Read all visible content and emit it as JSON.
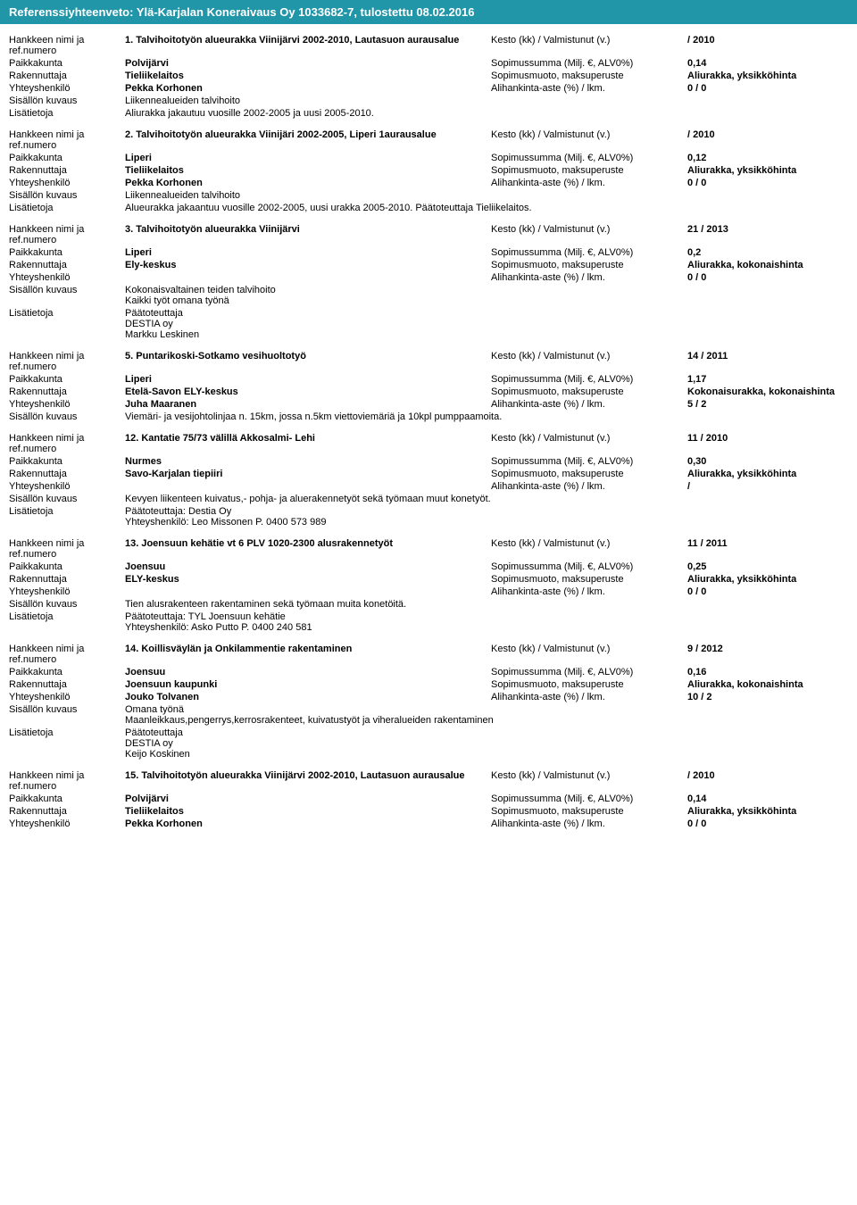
{
  "header": "Referenssiyhteenveto: Ylä-Karjalan Koneraivaus Oy 1033682-7, tulostettu 08.02.2016",
  "labels": {
    "name": "Hankkeen nimi ja ref.numero",
    "place": "Paikkakunta",
    "client": "Rakennuttaja",
    "contact": "Yhteyshenkilö",
    "desc": "Sisällön kuvaus",
    "extra": "Lisätietoja",
    "duration": "Kesto (kk) / Valmistunut (v.)",
    "sum": "Sopimussumma (Milj. €, ALV0%)",
    "form": "Sopimusmuoto, maksuperuste",
    "sub": "Alihankinta-aste (%) / lkm."
  },
  "projects": [
    {
      "name": "1. Talvihoitotyön alueurakka Viinijärvi 2002-2010, Lautasuon aurausalue",
      "duration": "/ 2010",
      "place": "Polvijärvi",
      "sum": "0,14",
      "client": "Tieliikelaitos",
      "form": "Aliurakka, yksikköhinta",
      "contact": "Pekka Korhonen",
      "sub": "0 / 0",
      "desc": "Liikennealueiden talvihoito",
      "extra": "Aliurakka jakautuu vuosille 2002-2005 ja uusi 2005-2010."
    },
    {
      "name": "2. Talvihoitotyön alueurakka Viinijäri 2002-2005, Liperi 1aurausalue",
      "duration": "/ 2010",
      "place": "Liperi",
      "sum": "0,12",
      "client": "Tieliikelaitos",
      "form": "Aliurakka, yksikköhinta",
      "contact": "Pekka Korhonen",
      "sub": "0 / 0",
      "desc": "Liikennealueiden talvihoito",
      "extra": "Alueurakka jakaantuu vuosille 2002-2005, uusi urakka 2005-2010. Päätoteuttaja Tieliikelaitos."
    },
    {
      "name": "3. Talvihoitotyön alueurakka Viinijärvi",
      "duration": "21 / 2013",
      "place": "Liperi",
      "sum": "0,2",
      "client": "Ely-keskus",
      "form": "Aliurakka, kokonaishinta",
      "contact": "",
      "sub": "0 / 0",
      "desc": "Kokonaisvaltainen teiden talvihoito\nKaikki työt omana työnä",
      "extra": "Päätoteuttaja\nDESTIA oy\nMarkku Leskinen"
    },
    {
      "name": "5. Puntarikoski-Sotkamo vesihuoltotyö",
      "duration": "14 / 2011",
      "place": "Liperi",
      "sum": "1,17",
      "client": "Etelä-Savon ELY-keskus",
      "form": "Kokonaisurakka, kokonaishinta",
      "contact": "Juha Maaranen",
      "sub": "5 / 2",
      "desc": "Viemäri- ja vesijohtolinjaa n. 15km, jossa n.5km viettoviemäriä ja 10kpl pumppaamoita.",
      "extra": ""
    },
    {
      "name": "12. Kantatie 75/73 välillä Akkosalmi- Lehi",
      "duration": "11 / 2010",
      "place": "Nurmes",
      "sum": "0,30",
      "client": "Savo-Karjalan tiepiiri",
      "form": "Aliurakka, yksikköhinta",
      "contact": "",
      "sub": "/",
      "desc": "Kevyen liikenteen kuivatus,- pohja- ja aluerakennetyöt sekä työmaan muut konetyöt.",
      "extra": "Päätoteuttaja: Destia Oy\nYhteyshenkilö: Leo Missonen P. 0400 573 989"
    },
    {
      "name": "13. Joensuun kehätie vt 6 PLV 1020-2300 alusrakennetyöt",
      "duration": "11 / 2011",
      "place": "Joensuu",
      "sum": "0,25",
      "client": "ELY-keskus",
      "form": "Aliurakka, yksikköhinta",
      "contact": "",
      "sub": "0 / 0",
      "desc": "Tien alusrakenteen rakentaminen sekä työmaan muita konetöitä.",
      "extra": "Päätoteuttaja: TYL Joensuun kehätie\nYhteyshenkilö: Asko Putto P. 0400 240 581"
    },
    {
      "name": "14. Koillisväylän ja Onkilammentie rakentaminen",
      "duration": "9 / 2012",
      "place": "Joensuu",
      "sum": "0,16",
      "client": "Joensuun kaupunki",
      "form": "Aliurakka, kokonaishinta",
      "contact": "Jouko Tolvanen",
      "sub": "10 / 2",
      "desc": "Omana työnä\nMaanleikkaus,pengerrys,kerrosrakenteet, kuivatustyöt ja viheralueiden rakentaminen",
      "extra": "Päätoteuttaja\nDESTIA oy\nKeijo Koskinen"
    },
    {
      "name": "15. Talvihoitotyön alueurakka Viinijärvi 2002-2010, Lautasuon aurausalue",
      "duration": "/ 2010",
      "place": "Polvijärvi",
      "sum": "0,14",
      "client": "Tieliikelaitos",
      "form": "Aliurakka, yksikköhinta",
      "contact": "Pekka Korhonen",
      "sub": "0 / 0",
      "desc": "",
      "extra": ""
    }
  ]
}
